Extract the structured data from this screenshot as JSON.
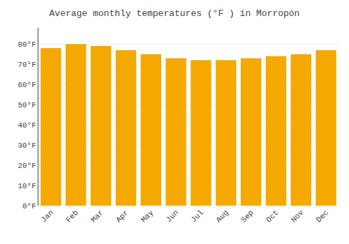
{
  "chart_data": {
    "type": "bar",
    "title": "Average monthly temperatures (°F ) in Morropón",
    "categories": [
      "Jan",
      "Feb",
      "Mar",
      "Apr",
      "May",
      "Jun",
      "Jul",
      "Aug",
      "Sep",
      "Oct",
      "Nov",
      "Dec"
    ],
    "values": [
      78,
      80,
      79,
      77,
      75,
      73,
      72,
      72,
      73,
      74,
      75,
      77
    ],
    "color": "#F5A800",
    "ylim": [
      0,
      88
    ],
    "yticks": [
      {
        "value": 0,
        "label": "0°F"
      },
      {
        "value": 10,
        "label": "10°F"
      },
      {
        "value": 20,
        "label": "20°F"
      },
      {
        "value": 30,
        "label": "30°F"
      },
      {
        "value": 40,
        "label": "40°F"
      },
      {
        "value": 50,
        "label": "50°F"
      },
      {
        "value": 60,
        "label": "60°F"
      },
      {
        "value": 70,
        "label": "70°F"
      },
      {
        "value": 80,
        "label": "80°F"
      }
    ],
    "grid": true
  }
}
